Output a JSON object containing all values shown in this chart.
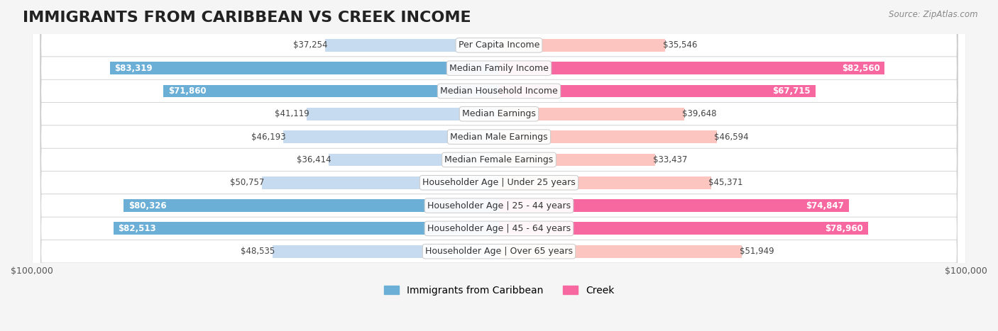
{
  "title": "IMMIGRANTS FROM CARIBBEAN VS CREEK INCOME",
  "source": "Source: ZipAtlas.com",
  "categories": [
    "Per Capita Income",
    "Median Family Income",
    "Median Household Income",
    "Median Earnings",
    "Median Male Earnings",
    "Median Female Earnings",
    "Householder Age | Under 25 years",
    "Householder Age | 25 - 44 years",
    "Householder Age | 45 - 64 years",
    "Householder Age | Over 65 years"
  ],
  "caribbean_values": [
    37254,
    83319,
    71860,
    41119,
    46193,
    36414,
    50757,
    80326,
    82513,
    48535
  ],
  "creek_values": [
    35546,
    82560,
    67715,
    39648,
    46594,
    33437,
    45371,
    74847,
    78960,
    51949
  ],
  "max_value": 100000,
  "caribbean_color_full": "#6baed6",
  "caribbean_color_light": "#c6dbef",
  "creek_color_full": "#f768a1",
  "creek_color_light": "#fcc5c0",
  "background_color": "#f5f5f5",
  "row_background": "#ffffff",
  "bar_height": 0.55,
  "title_fontsize": 16,
  "label_fontsize": 9,
  "value_fontsize": 8.5,
  "legend_fontsize": 10,
  "threshold_full": 60000
}
